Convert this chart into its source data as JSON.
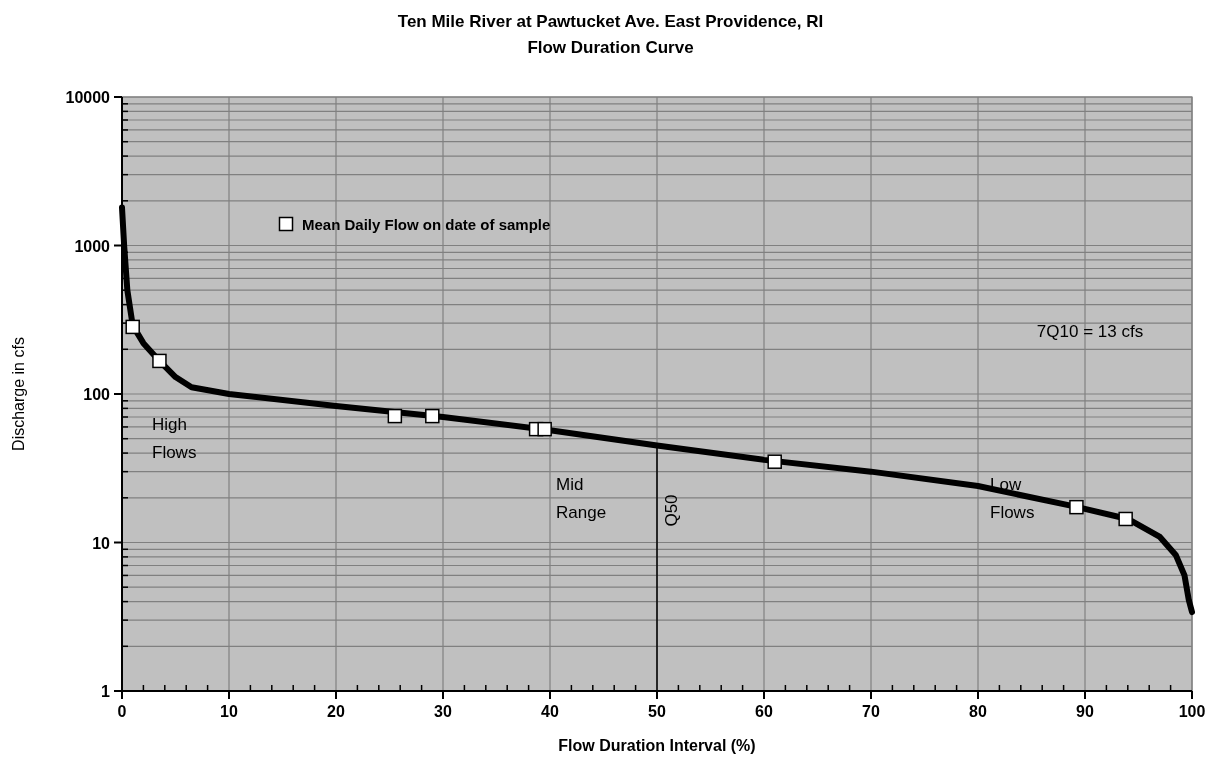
{
  "chart_data": {
    "type": "line",
    "title": "Ten Mile River at Pawtucket Ave. East Providence, RI",
    "subtitle": "Flow Duration Curve",
    "xlabel": "Flow Duration Interval (%)",
    "ylabel": "Discharge in cfs",
    "xlim": [
      0,
      100
    ],
    "xticks": [
      0,
      10,
      20,
      30,
      40,
      50,
      60,
      70,
      80,
      90,
      100
    ],
    "ylim": [
      1,
      10000
    ],
    "yticks": [
      1,
      10,
      100,
      1000,
      10000
    ],
    "log": "y",
    "grid": true,
    "legend": "top left",
    "series": [
      {
        "color": "#000000",
        "marker": "none",
        "line_style": "solid",
        "x": [
          0,
          0.2,
          0.5,
          1,
          2,
          3.5,
          5,
          6.5,
          10,
          20,
          30,
          40,
          50,
          60,
          70,
          80,
          89,
          94,
          97,
          98.5,
          99.3,
          99.7,
          100
        ],
        "values": [
          1800,
          1000,
          500,
          290,
          220,
          167,
          130,
          111,
          100,
          83,
          70,
          57,
          45,
          36,
          30,
          24,
          17.5,
          14.4,
          10.9,
          8.2,
          6,
          4.1,
          3.4
        ]
      },
      {
        "type": "scatter",
        "name": "Mean Daily Flow on date of sample",
        "color": "#ffffff",
        "marker": "square",
        "x": [
          1,
          3.5,
          25.5,
          29,
          38.7,
          39.5,
          61,
          89.2,
          93.8
        ],
        "values": [
          283,
          167,
          71,
          71,
          58,
          58,
          35,
          17.3,
          14.4
        ]
      }
    ],
    "ref_lines": [
      {
        "axis": "x",
        "value": 50,
        "label": "Q50",
        "color": "#000000"
      }
    ],
    "annotations": [
      "High Flows",
      "Mid Range",
      "Low Flows",
      "7Q10 = 13 cfs"
    ]
  }
}
